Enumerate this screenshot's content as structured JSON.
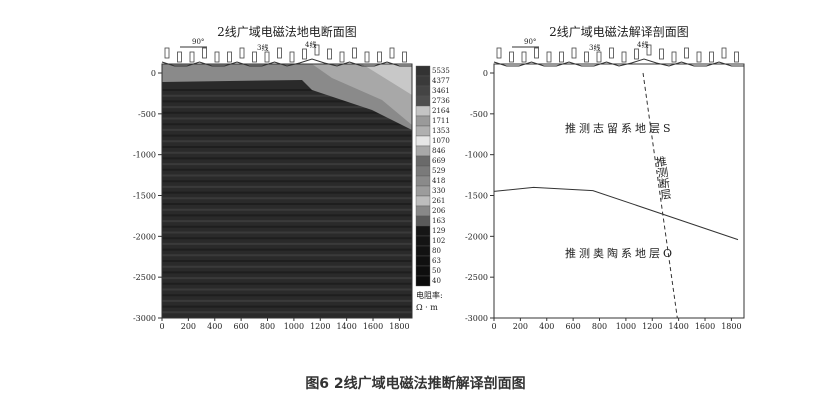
{
  "figure": {
    "caption": "图6 2线广域电磁法推断解译剖面图",
    "left_panel": {
      "title": "2线广域电磁法地电断面图",
      "azimuth_label": "90°",
      "line_labels": [
        "3线",
        "4线"
      ],
      "colorbar": {
        "values": [
          "5535",
          "4377",
          "3461",
          "2736",
          "2164",
          "1711",
          "1353",
          "1070",
          "846",
          "669",
          "529",
          "418",
          "330",
          "261",
          "206",
          "163",
          "129",
          "102",
          "80",
          "63",
          "50",
          "40"
        ],
        "colors": [
          "#333333",
          "#3a3a3a",
          "#444444",
          "#4e4e4e",
          "#c4c4c4",
          "#9a9a9a",
          "#b0b0b0",
          "#e6e6e6",
          "#a8a8a8",
          "#6a6a6a",
          "#7a7a7a",
          "#8a8a8a",
          "#9c9c9c",
          "#bdbdbd",
          "#888888",
          "#5a5a5a",
          "#161616",
          "#141414",
          "#121212",
          "#101010",
          "#0e0e0e",
          "#0c0c0c"
        ],
        "unit_label_1": "电阻率:",
        "unit_label_2": "Ω · m"
      }
    },
    "right_panel": {
      "title": "2线广域电磁法解译剖面图",
      "azimuth_label": "90°",
      "line_labels": [
        "3线",
        "4线"
      ],
      "upper_unit": "推测志留系地层S",
      "lower_unit": "推测奥陶系地层O",
      "fault_label": "推测断层",
      "boundary": {
        "x": [
          0,
          300,
          750,
          1850
        ],
        "y": [
          -1450,
          -1400,
          -1440,
          -2040
        ]
      },
      "fault": {
        "x": [
          1130,
          1390
        ],
        "y": [
          0,
          -3000
        ]
      }
    },
    "axes": {
      "x_ticks": [
        0,
        200,
        400,
        600,
        800,
        1000,
        1200,
        1400,
        1600,
        1800
      ],
      "y_ticks": [
        0,
        -500,
        -1000,
        -1500,
        -2000,
        -2500,
        -3000
      ],
      "xlim": [
        0,
        1850
      ],
      "ylim": [
        -3000,
        0
      ]
    }
  }
}
